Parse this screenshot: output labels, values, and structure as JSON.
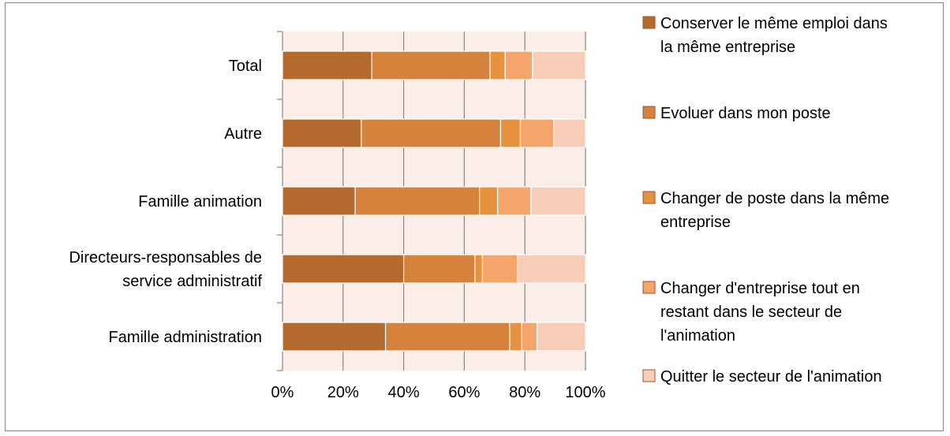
{
  "chart_data": {
    "type": "bar",
    "orientation": "horizontal",
    "stacked": "percent",
    "categories": [
      [
        "Total"
      ],
      [
        "Autre"
      ],
      [
        "Famille animation"
      ],
      [
        "Directeurs-responsables de",
        "service administratif"
      ],
      [
        "Famille administration"
      ]
    ],
    "series": [
      {
        "name": [
          "Conserver le même emploi dans",
          "la même entreprise"
        ],
        "color": "#b56a2e",
        "values": [
          29.5,
          26,
          24,
          40,
          34
        ]
      },
      {
        "name": [
          "Evoluer dans mon poste"
        ],
        "color": "#d5823d",
        "values": [
          39,
          46,
          41,
          23.5,
          41
        ]
      },
      {
        "name": [
          "Changer de poste dans la même",
          "entreprise"
        ],
        "color": "#e7923f",
        "values": [
          5,
          6.5,
          6,
          2.5,
          4
        ]
      },
      {
        "name": [
          "Changer d'entreprise tout en",
          "restant dans le secteur de",
          "l'animation"
        ],
        "color": "#f5a46b",
        "values": [
          9,
          11,
          11,
          11.5,
          5
        ]
      },
      {
        "name": [
          "Quitter le secteur de l'animation"
        ],
        "color": "#f8cdb8",
        "values": [
          17.5,
          10.5,
          18,
          22.5,
          16
        ]
      }
    ],
    "xlim": [
      0,
      100
    ],
    "xticks": [
      "0%",
      "20%",
      "40%",
      "60%",
      "80%",
      "100%"
    ],
    "grid": true,
    "legend_position": "right"
  }
}
